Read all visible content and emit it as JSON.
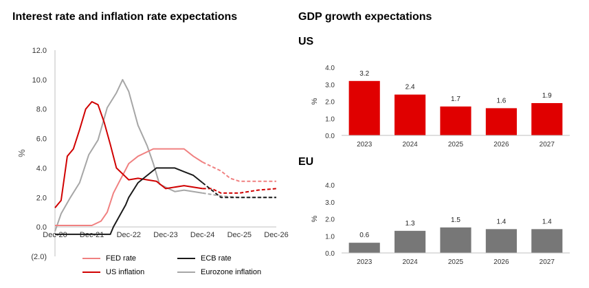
{
  "titles": {
    "left": "Interest rate and inflation rate expectations",
    "right": "GDP growth expectations"
  },
  "colors": {
    "fed": "#f08080",
    "ecb": "#1a1a1a",
    "us_inflation": "#d00000",
    "eurozone_inflation": "#a6a6a6",
    "us_bar": "#e00000",
    "eu_bar": "#777777",
    "axis": "#bfbfbf"
  },
  "chart_data": [
    {
      "type": "line",
      "title": "Interest rate and inflation rate expectations",
      "ylabel": "%",
      "ylim": [
        -2.0,
        12.0
      ],
      "yticks": [
        "(2.0)",
        "0.0",
        "2.0",
        "4.0",
        "6.0",
        "8.0",
        "10.0",
        "12.0"
      ],
      "ytick_values": [
        -2,
        0,
        2,
        4,
        6,
        8,
        10,
        12
      ],
      "xlim": [
        "2020-12",
        "2026-12"
      ],
      "xticks": [
        "Dec-20",
        "Dec-21",
        "Dec-22",
        "Dec-23",
        "Dec-24",
        "Dec-25",
        "Dec-26"
      ],
      "xtick_values": [
        "2020-12",
        "2021-12",
        "2022-12",
        "2023-12",
        "2024-12",
        "2025-12",
        "2026-12"
      ],
      "forecast_from": "2024-12",
      "legend": "bottom",
      "series": [
        {
          "name": "FED rate",
          "key": "fed",
          "points": [
            [
              "2020-12",
              0.1
            ],
            [
              "2021-03",
              0.1
            ],
            [
              "2021-06",
              0.1
            ],
            [
              "2021-09",
              0.1
            ],
            [
              "2021-12",
              0.1
            ],
            [
              "2022-03",
              0.4
            ],
            [
              "2022-05",
              1.0
            ],
            [
              "2022-07",
              2.3
            ],
            [
              "2022-09",
              3.1
            ],
            [
              "2022-11",
              3.9
            ],
            [
              "2022-12",
              4.3
            ],
            [
              "2023-03",
              4.8
            ],
            [
              "2023-06",
              5.1
            ],
            [
              "2023-08",
              5.3
            ],
            [
              "2023-12",
              5.3
            ],
            [
              "2024-06",
              5.3
            ],
            [
              "2024-09",
              4.8
            ],
            [
              "2024-12",
              4.4
            ],
            [
              "2025-03",
              4.1
            ],
            [
              "2025-06",
              3.8
            ],
            [
              "2025-09",
              3.3
            ],
            [
              "2025-12",
              3.1
            ],
            [
              "2026-06",
              3.1
            ],
            [
              "2026-12",
              3.1
            ]
          ]
        },
        {
          "name": "ECB rate",
          "key": "ecb",
          "points": [
            [
              "2020-12",
              -0.5
            ],
            [
              "2021-06",
              -0.5
            ],
            [
              "2021-12",
              -0.5
            ],
            [
              "2022-06",
              -0.5
            ],
            [
              "2022-07",
              0.0
            ],
            [
              "2022-09",
              0.75
            ],
            [
              "2022-11",
              1.5
            ],
            [
              "2022-12",
              2.0
            ],
            [
              "2023-03",
              3.0
            ],
            [
              "2023-06",
              3.5
            ],
            [
              "2023-09",
              4.0
            ],
            [
              "2023-12",
              4.0
            ],
            [
              "2024-03",
              4.0
            ],
            [
              "2024-06",
              3.75
            ],
            [
              "2024-09",
              3.5
            ],
            [
              "2024-12",
              3.0
            ],
            [
              "2025-03",
              2.5
            ],
            [
              "2025-06",
              2.0
            ],
            [
              "2025-12",
              2.0
            ],
            [
              "2026-06",
              2.0
            ],
            [
              "2026-12",
              2.0
            ]
          ]
        },
        {
          "name": "US inflation",
          "key": "us_inflation",
          "points": [
            [
              "2020-12",
              1.3
            ],
            [
              "2021-02",
              1.8
            ],
            [
              "2021-04",
              4.8
            ],
            [
              "2021-06",
              5.3
            ],
            [
              "2021-08",
              6.6
            ],
            [
              "2021-10",
              8.0
            ],
            [
              "2021-12",
              8.5
            ],
            [
              "2022-02",
              8.3
            ],
            [
              "2022-04",
              7.1
            ],
            [
              "2022-06",
              5.6
            ],
            [
              "2022-08",
              4.0
            ],
            [
              "2022-10",
              3.6
            ],
            [
              "2022-12",
              3.2
            ],
            [
              "2023-03",
              3.3
            ],
            [
              "2023-06",
              3.2
            ],
            [
              "2023-09",
              3.1
            ],
            [
              "2023-12",
              2.6
            ],
            [
              "2024-06",
              2.8
            ],
            [
              "2024-12",
              2.6
            ],
            [
              "2025-03",
              2.6
            ],
            [
              "2025-06",
              2.3
            ],
            [
              "2025-12",
              2.3
            ],
            [
              "2026-06",
              2.5
            ],
            [
              "2026-12",
              2.6
            ]
          ]
        },
        {
          "name": "Eurozone inflation",
          "key": "eurozone_inflation",
          "points": [
            [
              "2020-12",
              -0.3
            ],
            [
              "2021-02",
              0.9
            ],
            [
              "2021-05",
              2.0
            ],
            [
              "2021-08",
              3.0
            ],
            [
              "2021-11",
              4.9
            ],
            [
              "2022-02",
              5.9
            ],
            [
              "2022-05",
              8.1
            ],
            [
              "2022-08",
              9.1
            ],
            [
              "2022-10",
              10.0
            ],
            [
              "2022-12",
              9.2
            ],
            [
              "2023-03",
              6.9
            ],
            [
              "2023-06",
              5.5
            ],
            [
              "2023-08",
              4.3
            ],
            [
              "2023-10",
              2.9
            ],
            [
              "2023-12",
              2.7
            ],
            [
              "2024-03",
              2.4
            ],
            [
              "2024-06",
              2.5
            ],
            [
              "2024-12",
              2.3
            ],
            [
              "2025-06",
              2.1
            ],
            [
              "2025-12",
              2.0
            ],
            [
              "2026-06",
              2.0
            ],
            [
              "2026-12",
              2.0
            ]
          ]
        }
      ]
    },
    {
      "type": "bar",
      "title": "US",
      "ylabel": "%",
      "ylim": [
        0,
        4.0
      ],
      "yticks": [
        "0.0",
        "1.0",
        "2.0",
        "3.0",
        "4.0"
      ],
      "ytick_values": [
        0,
        1,
        2,
        3,
        4
      ],
      "categories": [
        "2023",
        "2024",
        "2025",
        "2026",
        "2027"
      ],
      "values": [
        3.2,
        2.4,
        1.7,
        1.6,
        1.9
      ],
      "labels": [
        "3.2",
        "2.4",
        "1.7",
        "1.6",
        "1.9"
      ]
    },
    {
      "type": "bar",
      "title": "EU",
      "ylabel": "%",
      "ylim": [
        0,
        4.0
      ],
      "yticks": [
        "0.0",
        "1.0",
        "2.0",
        "3.0",
        "4.0"
      ],
      "ytick_values": [
        0,
        1,
        2,
        3,
        4
      ],
      "categories": [
        "2023",
        "2024",
        "2025",
        "2026",
        "2027"
      ],
      "values": [
        0.6,
        1.3,
        1.5,
        1.4,
        1.4
      ],
      "labels": [
        "0.6",
        "1.3",
        "1.5",
        "1.4",
        "1.4"
      ]
    }
  ]
}
